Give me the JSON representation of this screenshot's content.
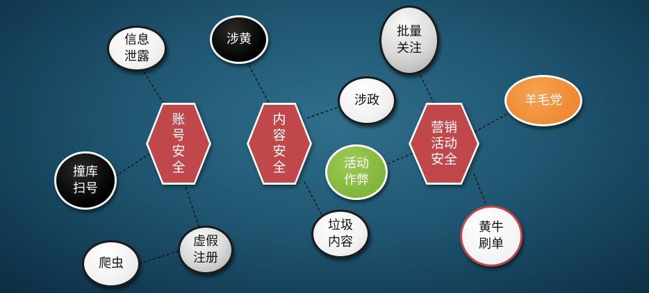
{
  "hubs": [
    {
      "id": "account",
      "lines": [
        "账",
        "号",
        "安",
        "全"
      ]
    },
    {
      "id": "content",
      "lines": [
        "内",
        "容",
        "安",
        "全"
      ]
    },
    {
      "id": "marketing",
      "lines": [
        "营销",
        "活动",
        "安全"
      ]
    }
  ],
  "nodes": [
    {
      "id": "info-leak",
      "lines": [
        "信息",
        "泄露"
      ],
      "style": "white"
    },
    {
      "id": "credential-stuffing",
      "lines": [
        "撞库",
        "扫号"
      ],
      "style": "black"
    },
    {
      "id": "fake-registration",
      "lines": [
        "虚假",
        "注册"
      ],
      "style": "gray"
    },
    {
      "id": "crawler",
      "lines": [
        "爬虫"
      ],
      "style": "white"
    },
    {
      "id": "pornography",
      "lines": [
        "涉黄"
      ],
      "style": "black"
    },
    {
      "id": "politics",
      "lines": [
        "涉政"
      ],
      "style": "white"
    },
    {
      "id": "spam-content",
      "lines": [
        "垃圾",
        "内容"
      ],
      "style": "white"
    },
    {
      "id": "bulk-follow",
      "lines": [
        "批量",
        "关注"
      ],
      "style": "gray"
    },
    {
      "id": "wool-party",
      "lines": [
        "羊毛党"
      ],
      "style": "orange"
    },
    {
      "id": "activity-cheating",
      "lines": [
        "活动",
        "作弊"
      ],
      "style": "green"
    },
    {
      "id": "scalper-orders",
      "lines": [
        "黄牛",
        "刷单"
      ],
      "style": "red"
    }
  ]
}
